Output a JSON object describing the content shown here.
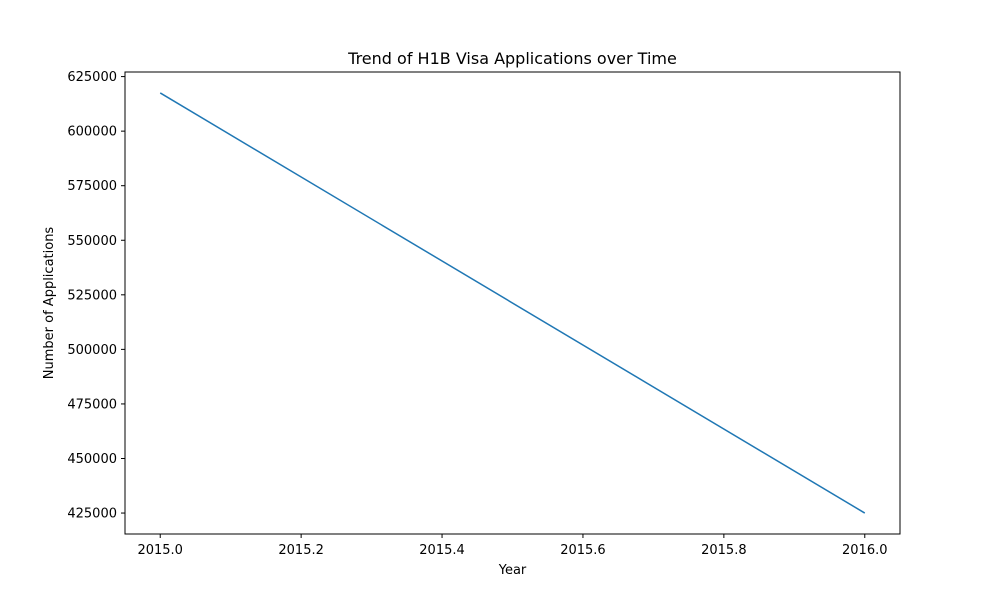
{
  "chart_data": {
    "type": "line",
    "title": "Trend of H1B Visa Applications over Time",
    "xlabel": "Year",
    "ylabel": "Number of Applications",
    "x": [
      2015,
      2016
    ],
    "series": [
      {
        "values": [
          617500,
          425000
        ],
        "color": "#1f77b4"
      }
    ],
    "xlim": [
      2014.95,
      2016.05
    ],
    "ylim": [
      415400,
      627100
    ],
    "xticks": [
      2015.0,
      2015.2,
      2015.4,
      2015.6,
      2015.8,
      2016.0
    ],
    "xtick_labels": [
      "2015.0",
      "2015.2",
      "2015.4",
      "2015.6",
      "2015.8",
      "2016.0"
    ],
    "yticks": [
      425000,
      450000,
      475000,
      500000,
      525000,
      550000,
      575000,
      600000,
      625000
    ],
    "ytick_labels": [
      "425000",
      "450000",
      "475000",
      "500000",
      "525000",
      "550000",
      "575000",
      "600000",
      "625000"
    ],
    "grid": false,
    "legend": "none"
  }
}
